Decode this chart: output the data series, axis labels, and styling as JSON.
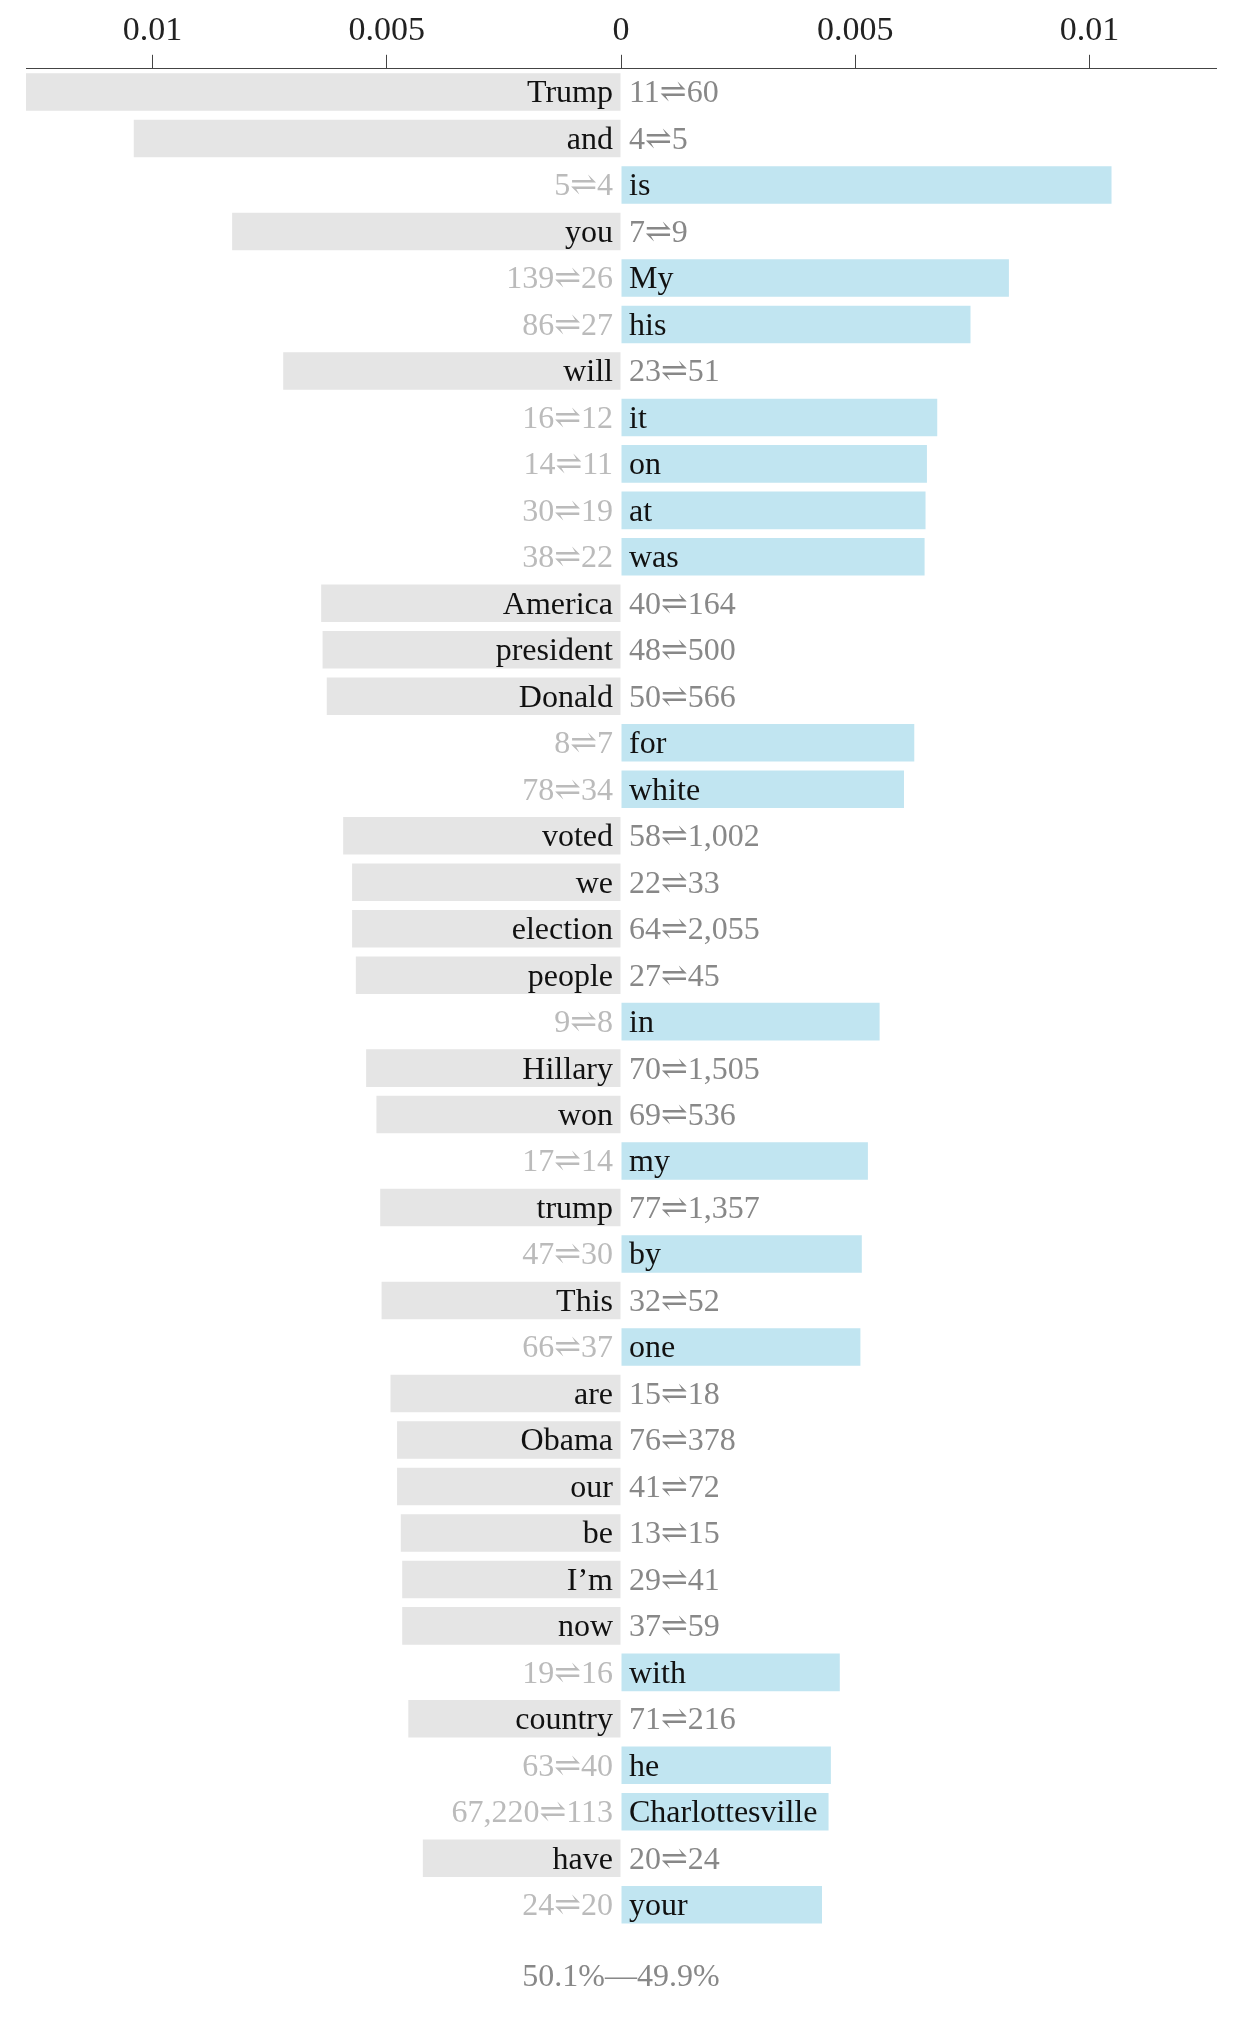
{
  "chart_data": {
    "type": "bar",
    "orientation": "horizontal",
    "categories": [
      "Trump",
      "and",
      "is",
      "you",
      "My",
      "his",
      "will",
      "it",
      "on",
      "at",
      "was",
      "America",
      "president",
      "Donald",
      "for",
      "white",
      "voted",
      "we",
      "election",
      "people",
      "in",
      "Hillary",
      "won",
      "my",
      "trump",
      "by",
      "This",
      "one",
      "are",
      "Obama",
      "our",
      "be",
      "I’m",
      "now",
      "with",
      "country",
      "he",
      "Charlottesville",
      "have",
      "your"
    ],
    "values": [
      -0.0127,
      -0.0104,
      0.01047,
      -0.0083,
      0.00828,
      0.00746,
      -0.00721,
      0.00675,
      0.00653,
      0.0065,
      0.00648,
      -0.0064,
      -0.00637,
      -0.00628,
      0.00626,
      0.00604,
      -0.00593,
      -0.00574,
      -0.00574,
      -0.00566,
      0.00552,
      -0.00544,
      -0.00522,
      0.00527,
      -0.00514,
      0.00514,
      -0.00511,
      0.00511,
      -0.00492,
      -0.00478,
      -0.00478,
      -0.0047,
      -0.00467,
      -0.00467,
      0.00467,
      -0.00454,
      0.00448,
      0.00443,
      -0.00423,
      0.00429
    ],
    "colors": [
      "#e5e5e5",
      "#e5e5e5",
      "#c1e5f1",
      "#e5e5e5",
      "#c1e5f1",
      "#c1e5f1",
      "#e5e5e5",
      "#c1e5f1",
      "#c1e5f1",
      "#c1e5f1",
      "#c1e5f1",
      "#e5e5e5",
      "#e5e5e5",
      "#e5e5e5",
      "#c1e5f1",
      "#c1e5f1",
      "#e5e5e5",
      "#e5e5e5",
      "#e5e5e5",
      "#e5e5e5",
      "#c1e5f1",
      "#e5e5e5",
      "#e5e5e5",
      "#c1e5f1",
      "#e5e5e5",
      "#c1e5f1",
      "#e5e5e5",
      "#c1e5f1",
      "#e5e5e5",
      "#e5e5e5",
      "#e5e5e5",
      "#e5e5e5",
      "#e5e5e5",
      "#e5e5e5",
      "#c1e5f1",
      "#e5e5e5",
      "#c1e5f1",
      "#c1e5f1",
      "#e5e5e5",
      "#c1e5f1"
    ],
    "xlim": [
      -0.0127,
      0.0127
    ],
    "xticks": [
      {
        "value": -0.01,
        "label": "0.01"
      },
      {
        "value": -0.005,
        "label": "0.005"
      },
      0,
      0.005,
      0.01
    ],
    "annotations": [
      "11⇌60",
      "4⇌5",
      "5⇌4",
      "7⇌9",
      "139⇌26",
      "86⇌27",
      "23⇌51",
      "16⇌12",
      "14⇌11",
      "30⇌19",
      "38⇌22",
      "40⇌164",
      "48⇌500",
      "50⇌566",
      "8⇌7",
      "78⇌34",
      "58⇌1,002",
      "22⇌33",
      "64⇌2,055",
      "27⇌45",
      "9⇌8",
      "70⇌1,505",
      "69⇌536",
      "17⇌14",
      "77⇌1,357",
      "47⇌30",
      "32⇌52",
      "66⇌37",
      "15⇌18",
      "76⇌378",
      "41⇌72",
      "13⇌15",
      "29⇌41",
      "37⇌59",
      "19⇌16",
      "71⇌216",
      "63⇌40",
      "67,220⇌113",
      "20⇌24",
      "24⇌20",
      "50.1%—49.9%"
    ]
  }
}
